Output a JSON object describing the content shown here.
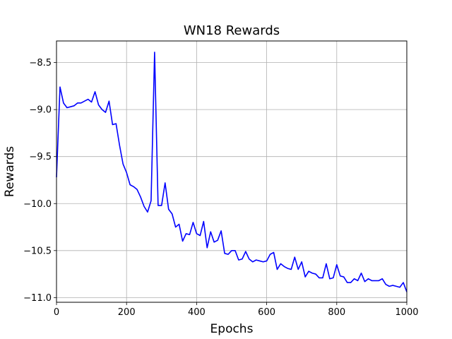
{
  "chart_data": {
    "type": "line",
    "title": "WN18 Rewards",
    "xlabel": "Epochs",
    "ylabel": "Rewards",
    "xlim": [
      0,
      1000
    ],
    "ylim": [
      -11.05,
      -8.27
    ],
    "x_ticks": [
      0,
      200,
      400,
      600,
      800,
      1000
    ],
    "x_tick_labels": [
      "0",
      "200",
      "400",
      "600",
      "800",
      "1000"
    ],
    "y_ticks": [
      -11.0,
      -10.5,
      -10.0,
      -9.5,
      -9.0,
      -8.5
    ],
    "y_tick_labels": [
      "−11.0",
      "−10.5",
      "−10.0",
      "−9.5",
      "−9.0",
      "−8.5"
    ],
    "grid": true,
    "series": [
      {
        "color": "#0000ff",
        "x": [
          0,
          10,
          20,
          30,
          40,
          50,
          60,
          70,
          80,
          90,
          100,
          110,
          120,
          130,
          140,
          150,
          160,
          170,
          180,
          190,
          200,
          210,
          220,
          230,
          240,
          250,
          260,
          270,
          280,
          290,
          300,
          310,
          320,
          330,
          340,
          350,
          360,
          370,
          380,
          390,
          400,
          410,
          420,
          430,
          440,
          450,
          460,
          470,
          480,
          490,
          500,
          510,
          520,
          530,
          540,
          550,
          560,
          570,
          580,
          590,
          600,
          610,
          620,
          630,
          640,
          650,
          660,
          670,
          680,
          690,
          700,
          710,
          720,
          730,
          740,
          750,
          760,
          770,
          780,
          790,
          800,
          810,
          820,
          830,
          840,
          850,
          860,
          870,
          880,
          890,
          900,
          910,
          920,
          930,
          940,
          950,
          960,
          970,
          980,
          990,
          1000
        ],
        "y": [
          -9.72,
          -8.76,
          -8.93,
          -8.98,
          -8.97,
          -8.96,
          -8.93,
          -8.93,
          -8.91,
          -8.89,
          -8.92,
          -8.81,
          -8.95,
          -9.0,
          -9.03,
          -8.91,
          -9.16,
          -9.15,
          -9.38,
          -9.58,
          -9.67,
          -9.8,
          -9.82,
          -9.85,
          -9.93,
          -10.03,
          -10.09,
          -9.97,
          -8.39,
          -10.02,
          -10.02,
          -9.78,
          -10.06,
          -10.11,
          -10.25,
          -10.22,
          -10.4,
          -10.32,
          -10.33,
          -10.2,
          -10.32,
          -10.34,
          -10.19,
          -10.47,
          -10.3,
          -10.41,
          -10.39,
          -10.29,
          -10.53,
          -10.54,
          -10.5,
          -10.5,
          -10.6,
          -10.59,
          -10.51,
          -10.59,
          -10.62,
          -10.6,
          -10.61,
          -10.62,
          -10.61,
          -10.54,
          -10.52,
          -10.7,
          -10.64,
          -10.67,
          -10.69,
          -10.7,
          -10.57,
          -10.7,
          -10.62,
          -10.78,
          -10.72,
          -10.74,
          -10.75,
          -10.79,
          -10.79,
          -10.64,
          -10.8,
          -10.79,
          -10.65,
          -10.77,
          -10.78,
          -10.84,
          -10.84,
          -10.8,
          -10.82,
          -10.74,
          -10.83,
          -10.8,
          -10.82,
          -10.82,
          -10.82,
          -10.8,
          -10.86,
          -10.88,
          -10.87,
          -10.88,
          -10.89,
          -10.84,
          -10.94
        ]
      }
    ]
  }
}
